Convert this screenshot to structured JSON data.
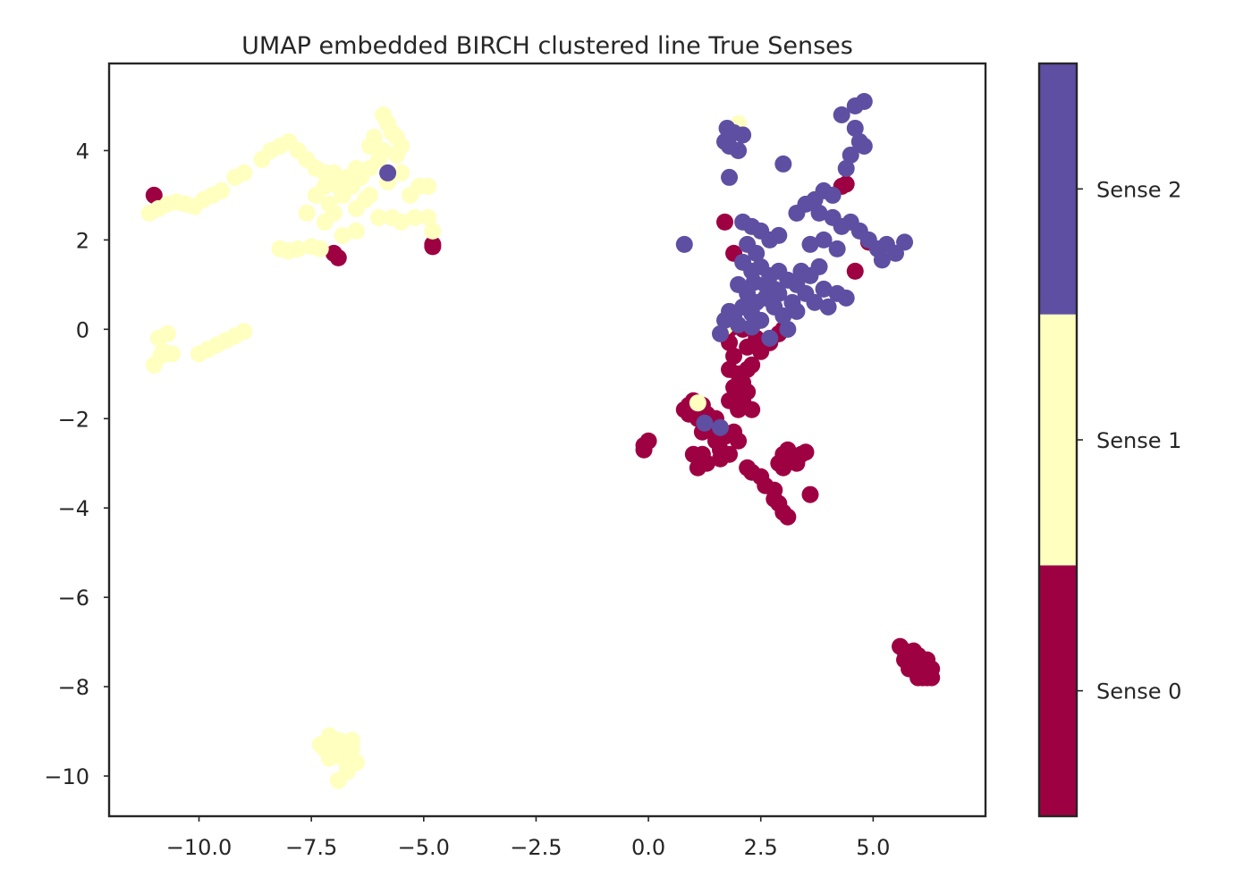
{
  "chart_data": {
    "type": "scatter",
    "title": "UMAP embedded BIRCH clustered line True Senses",
    "xlabel": "",
    "ylabel": "",
    "xlim": [
      -12.0,
      7.5
    ],
    "ylim": [
      -10.9,
      5.95
    ],
    "x_ticks": [
      -10.0,
      -7.5,
      -5.0,
      -2.5,
      0.0,
      2.5,
      5.0
    ],
    "x_tick_labels": [
      "−10.0",
      "−7.5",
      "−5.0",
      "−2.5",
      "0.0",
      "2.5",
      "5.0"
    ],
    "y_ticks": [
      4,
      2,
      0,
      -2,
      -4,
      -6,
      -8,
      -10
    ],
    "y_tick_labels": [
      "4",
      "2",
      "0",
      "−2",
      "−4",
      "−6",
      "−8",
      "−10"
    ],
    "grid": false,
    "colorbar": {
      "labels": [
        "Sense 0",
        "Sense 1",
        "Sense 2"
      ],
      "colors": [
        "#9e0142",
        "#ffffbf",
        "#5e4fa2"
      ]
    },
    "series": [
      {
        "color": "#9e0142",
        "points": [
          [
            -11.0,
            3.0
          ],
          [
            -7.0,
            1.7
          ],
          [
            -6.9,
            1.6
          ],
          [
            -4.8,
            1.9
          ],
          [
            -4.8,
            1.85
          ],
          [
            1.7,
            2.4
          ],
          [
            1.9,
            1.7
          ],
          [
            4.3,
            3.2
          ],
          [
            4.4,
            3.25
          ],
          [
            4.9,
            1.95
          ],
          [
            4.6,
            1.3
          ],
          [
            1.8,
            0.0
          ],
          [
            1.8,
            -0.3
          ],
          [
            1.9,
            -0.6
          ],
          [
            1.8,
            -0.9
          ],
          [
            2.0,
            -1.0
          ],
          [
            1.9,
            -1.3
          ],
          [
            2.0,
            -1.5
          ],
          [
            2.1,
            -1.6
          ],
          [
            2.2,
            -1.4
          ],
          [
            2.1,
            -1.2
          ],
          [
            2.2,
            -0.9
          ],
          [
            2.3,
            -0.8
          ],
          [
            2.5,
            -0.5
          ],
          [
            2.7,
            -0.3
          ],
          [
            2.4,
            -0.2
          ],
          [
            2.1,
            0.0
          ],
          [
            2.9,
            -0.1
          ],
          [
            3.0,
            0.0
          ],
          [
            2.2,
            -0.4
          ],
          [
            2.0,
            -1.8
          ],
          [
            1.8,
            -1.6
          ],
          [
            2.3,
            -1.8
          ],
          [
            0.8,
            -1.8
          ],
          [
            0.9,
            -1.9
          ],
          [
            1.0,
            -1.6
          ],
          [
            1.2,
            -1.7
          ],
          [
            1.3,
            -1.9
          ],
          [
            1.1,
            -2.0
          ],
          [
            0.9,
            -1.7
          ],
          [
            1.4,
            -2.2
          ],
          [
            1.5,
            -2.0
          ],
          [
            1.2,
            -2.3
          ],
          [
            1.5,
            -2.5
          ],
          [
            1.6,
            -2.7
          ],
          [
            1.2,
            -2.8
          ],
          [
            1.3,
            -3.0
          ],
          [
            1.1,
            -3.1
          ],
          [
            1.0,
            -2.8
          ],
          [
            1.7,
            -2.4
          ],
          [
            1.8,
            -2.8
          ],
          [
            1.9,
            -2.3
          ],
          [
            2.0,
            -2.5
          ],
          [
            1.6,
            -2.9
          ],
          [
            -0.1,
            -2.7
          ],
          [
            -0.1,
            -2.6
          ],
          [
            0.0,
            -2.5
          ],
          [
            2.2,
            -3.1
          ],
          [
            2.3,
            -3.2
          ],
          [
            2.5,
            -3.3
          ],
          [
            2.6,
            -3.5
          ],
          [
            2.8,
            -3.6
          ],
          [
            2.9,
            -3.9
          ],
          [
            3.0,
            -4.1
          ],
          [
            3.1,
            -4.2
          ],
          [
            2.8,
            -3.8
          ],
          [
            3.0,
            -2.8
          ],
          [
            3.1,
            -2.7
          ],
          [
            3.2,
            -2.9
          ],
          [
            3.3,
            -3.0
          ],
          [
            3.4,
            -2.8
          ],
          [
            3.5,
            -2.75
          ],
          [
            2.9,
            -3.0
          ],
          [
            3.6,
            -3.7
          ],
          [
            3.0,
            -3.1
          ],
          [
            5.6,
            -7.1
          ],
          [
            5.7,
            -7.2
          ],
          [
            5.8,
            -7.3
          ],
          [
            5.9,
            -7.2
          ],
          [
            6.0,
            -7.3
          ],
          [
            5.8,
            -7.5
          ],
          [
            5.9,
            -7.6
          ],
          [
            6.0,
            -7.5
          ],
          [
            6.1,
            -7.6
          ],
          [
            6.2,
            -7.5
          ],
          [
            6.3,
            -7.6
          ],
          [
            6.0,
            -7.7
          ],
          [
            6.1,
            -7.8
          ],
          [
            6.2,
            -7.8
          ],
          [
            6.3,
            -7.8
          ],
          [
            5.7,
            -7.4
          ],
          [
            6.2,
            -7.4
          ],
          [
            6.1,
            -7.7
          ],
          [
            5.8,
            -7.6
          ],
          [
            6.0,
            -7.8
          ],
          [
            6.25,
            -7.7
          ]
        ]
      },
      {
        "color": "#ffffbf",
        "points": [
          [
            -11.1,
            2.6
          ],
          [
            -10.9,
            2.7
          ],
          [
            -10.7,
            2.8
          ],
          [
            -10.5,
            2.85
          ],
          [
            -10.3,
            2.8
          ],
          [
            -10.1,
            2.75
          ],
          [
            -9.9,
            2.9
          ],
          [
            -9.7,
            3.0
          ],
          [
            -9.5,
            3.1
          ],
          [
            -9.2,
            3.4
          ],
          [
            -9.0,
            3.5
          ],
          [
            -8.6,
            3.8
          ],
          [
            -8.4,
            4.0
          ],
          [
            -8.2,
            4.1
          ],
          [
            -8.0,
            4.2
          ],
          [
            -7.8,
            4.0
          ],
          [
            -7.6,
            3.8
          ],
          [
            -7.4,
            3.6
          ],
          [
            -7.2,
            3.5
          ],
          [
            -7.0,
            3.5
          ],
          [
            -6.9,
            3.2
          ],
          [
            -7.2,
            3.2
          ],
          [
            -7.4,
            3.0
          ],
          [
            -7.1,
            2.8
          ],
          [
            -6.8,
            3.0
          ],
          [
            -6.6,
            3.2
          ],
          [
            -6.4,
            3.4
          ],
          [
            -6.2,
            3.6
          ],
          [
            -6.0,
            3.8
          ],
          [
            -5.9,
            4.0
          ],
          [
            -6.2,
            4.1
          ],
          [
            -6.1,
            4.3
          ],
          [
            -5.7,
            4.4
          ],
          [
            -5.9,
            4.8
          ],
          [
            -5.8,
            4.6
          ],
          [
            -5.6,
            4.3
          ],
          [
            -5.5,
            4.1
          ],
          [
            -5.6,
            3.9
          ],
          [
            -6.3,
            2.9
          ],
          [
            -6.5,
            2.7
          ],
          [
            -7.0,
            2.6
          ],
          [
            -7.6,
            2.6
          ],
          [
            -7.2,
            2.4
          ],
          [
            -6.8,
            2.1
          ],
          [
            -6.5,
            2.2
          ],
          [
            -6.0,
            2.5
          ],
          [
            -5.7,
            2.5
          ],
          [
            -5.5,
            2.4
          ],
          [
            -5.2,
            2.5
          ],
          [
            -5.3,
            3.0
          ],
          [
            -5.1,
            3.2
          ],
          [
            -4.9,
            3.2
          ],
          [
            -4.8,
            2.2
          ],
          [
            -4.9,
            2.5
          ],
          [
            -6.2,
            3.0
          ],
          [
            -5.8,
            3.3
          ],
          [
            -5.5,
            3.5
          ],
          [
            -8.2,
            1.8
          ],
          [
            -8.0,
            1.75
          ],
          [
            -7.8,
            1.8
          ],
          [
            -7.5,
            1.85
          ],
          [
            -7.3,
            1.8
          ],
          [
            -6.7,
            3.4
          ],
          [
            -6.5,
            3.6
          ],
          [
            -11.0,
            -0.8
          ],
          [
            -10.8,
            -0.5
          ],
          [
            -10.6,
            -0.55
          ],
          [
            -10.9,
            -0.2
          ],
          [
            -10.7,
            -0.1
          ],
          [
            -10.85,
            -0.6
          ],
          [
            -10.0,
            -0.55
          ],
          [
            -9.8,
            -0.45
          ],
          [
            -9.6,
            -0.35
          ],
          [
            -9.4,
            -0.25
          ],
          [
            -9.2,
            -0.15
          ],
          [
            -9.0,
            -0.05
          ],
          [
            -7.3,
            -9.3
          ],
          [
            -7.1,
            -9.1
          ],
          [
            -6.9,
            -9.2
          ],
          [
            -7.0,
            -9.5
          ],
          [
            -6.8,
            -9.6
          ],
          [
            -6.6,
            -9.4
          ],
          [
            -6.5,
            -9.7
          ],
          [
            -6.7,
            -9.9
          ],
          [
            -6.9,
            -10.1
          ],
          [
            -7.1,
            -9.6
          ],
          [
            -6.6,
            -9.2
          ],
          [
            -7.2,
            -9.4
          ],
          [
            -6.8,
            -9.3
          ],
          [
            -6.7,
            -9.75
          ],
          [
            2.0,
            4.6
          ],
          [
            1.7,
            0.05
          ],
          [
            1.1,
            -1.65
          ]
        ]
      },
      {
        "color": "#5e4fa2",
        "points": [
          [
            -5.8,
            3.5
          ],
          [
            1.7,
            4.2
          ],
          [
            1.9,
            4.4
          ],
          [
            1.8,
            4.1
          ],
          [
            2.1,
            4.35
          ],
          [
            1.75,
            4.5
          ],
          [
            2.0,
            4.0
          ],
          [
            1.8,
            3.4
          ],
          [
            3.0,
            3.7
          ],
          [
            0.8,
            1.9
          ],
          [
            4.3,
            4.8
          ],
          [
            4.6,
            5.0
          ],
          [
            4.8,
            5.1
          ],
          [
            4.6,
            4.5
          ],
          [
            4.7,
            4.2
          ],
          [
            4.5,
            3.9
          ],
          [
            4.8,
            4.1
          ],
          [
            4.4,
            3.6
          ],
          [
            3.5,
            2.8
          ],
          [
            3.7,
            2.9
          ],
          [
            3.9,
            3.1
          ],
          [
            4.1,
            3.0
          ],
          [
            3.8,
            2.6
          ],
          [
            4.1,
            2.5
          ],
          [
            4.3,
            2.3
          ],
          [
            4.5,
            2.4
          ],
          [
            4.7,
            2.2
          ],
          [
            4.9,
            2.0
          ],
          [
            5.1,
            1.8
          ],
          [
            5.3,
            1.9
          ],
          [
            5.5,
            1.7
          ],
          [
            5.7,
            1.95
          ],
          [
            5.2,
            1.55
          ],
          [
            3.6,
            1.9
          ],
          [
            3.9,
            2.0
          ],
          [
            4.2,
            1.8
          ],
          [
            3.3,
            2.6
          ],
          [
            2.1,
            2.4
          ],
          [
            2.3,
            2.3
          ],
          [
            2.5,
            2.2
          ],
          [
            2.7,
            2.0
          ],
          [
            2.9,
            2.1
          ],
          [
            2.2,
            1.9
          ],
          [
            2.4,
            1.7
          ],
          [
            2.1,
            1.5
          ],
          [
            2.3,
            1.3
          ],
          [
            2.5,
            1.4
          ],
          [
            2.7,
            1.2
          ],
          [
            2.9,
            1.3
          ],
          [
            3.1,
            1.1
          ],
          [
            3.3,
            1.0
          ],
          [
            3.5,
            0.8
          ],
          [
            3.7,
            0.6
          ],
          [
            3.9,
            0.9
          ],
          [
            4.2,
            0.8
          ],
          [
            4.4,
            0.7
          ],
          [
            4.0,
            0.5
          ],
          [
            2.0,
            1.0
          ],
          [
            2.2,
            0.8
          ],
          [
            2.4,
            0.6
          ],
          [
            2.6,
            0.7
          ],
          [
            2.8,
            0.5
          ],
          [
            3.0,
            0.3
          ],
          [
            2.5,
            0.2
          ],
          [
            2.3,
            0.35
          ],
          [
            2.1,
            0.5
          ],
          [
            1.9,
            0.3
          ],
          [
            1.7,
            0.2
          ],
          [
            1.6,
            -0.1
          ],
          [
            2.8,
            0.9
          ],
          [
            3.2,
            0.6
          ],
          [
            3.4,
            1.3
          ],
          [
            3.6,
            1.2
          ],
          [
            2.6,
            1.0
          ],
          [
            2.9,
            0.8
          ],
          [
            3.1,
            0.0
          ],
          [
            2.7,
            -0.2
          ],
          [
            1.8,
            0.4
          ],
          [
            2.0,
            0.1
          ],
          [
            2.3,
            0.05
          ],
          [
            3.3,
            0.4
          ],
          [
            3.8,
            1.4
          ],
          [
            2.35,
            1.05
          ],
          [
            1.25,
            -2.1
          ],
          [
            1.6,
            -2.2
          ]
        ]
      }
    ]
  }
}
